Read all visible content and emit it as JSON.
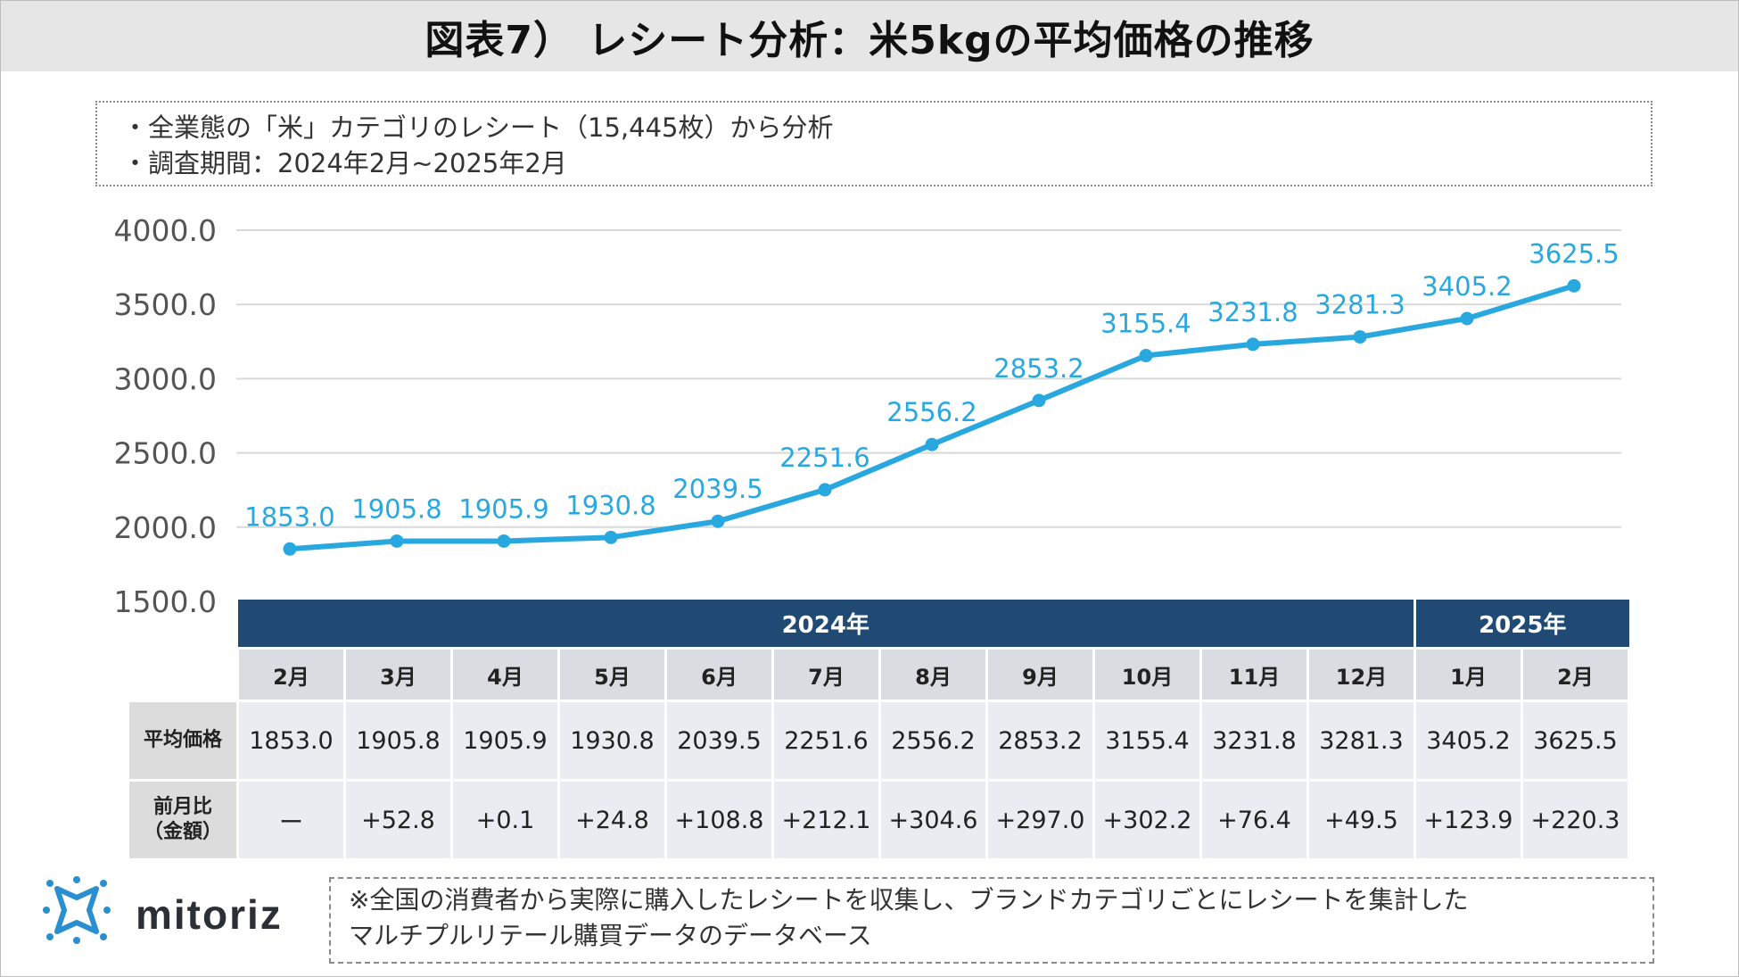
{
  "title": "図表7） レシート分析：米5kgの平均価格の推移",
  "notes": [
    "・全業態の「米」カテゴリのレシート（15,445枚）から分析",
    "・調査期間：2024年2月~2025年2月"
  ],
  "chart_data": {
    "type": "line",
    "title": "レシート分析：米5kgの平均価格の推移",
    "categories": [
      "2月",
      "3月",
      "4月",
      "5月",
      "6月",
      "7月",
      "8月",
      "9月",
      "10月",
      "11月",
      "12月",
      "1月",
      "2月"
    ],
    "values": [
      1853.0,
      1905.8,
      1905.9,
      1930.8,
      2039.5,
      2251.6,
      2556.2,
      2853.2,
      3155.4,
      3231.8,
      3281.3,
      3405.2,
      3625.5
    ],
    "data_labels": [
      "1853.0",
      "1905.8",
      "1905.9",
      "1930.8",
      "2039.5",
      "2251.6",
      "2556.2",
      "2853.2",
      "3155.4",
      "3231.8",
      "3281.3",
      "3405.2",
      "3625.5"
    ],
    "y_ticks": [
      "1500.0",
      "2000.0",
      "2500.0",
      "3000.0",
      "3500.0",
      "4000.0"
    ],
    "ylim": [
      1500,
      4000
    ],
    "grid": true,
    "line_color": "#29a8e0",
    "label_color": "#29a8e0"
  },
  "table": {
    "years": [
      {
        "label": "2024年",
        "span": 11
      },
      {
        "label": "2025年",
        "span": 2
      }
    ],
    "row_labels": {
      "avg_price": "平均価格",
      "mom_line1": "前月比",
      "mom_line2": "（金額）"
    },
    "mom_values": [
      "ー",
      "+52.8",
      "+0.1",
      "+24.8",
      "+108.8",
      "+212.1",
      "+304.6",
      "+297.0",
      "+302.2",
      "+76.4",
      "+49.5",
      "+123.9",
      "+220.3"
    ]
  },
  "logo": {
    "text": "mitoriz",
    "color": "#2a8fcf"
  },
  "footnote": [
    "※全国の消費者から実際に購入したレシートを収集し、ブランドカテゴリごとにレシートを集計した",
    "マルチプルリテール購買データのデータベース"
  ]
}
